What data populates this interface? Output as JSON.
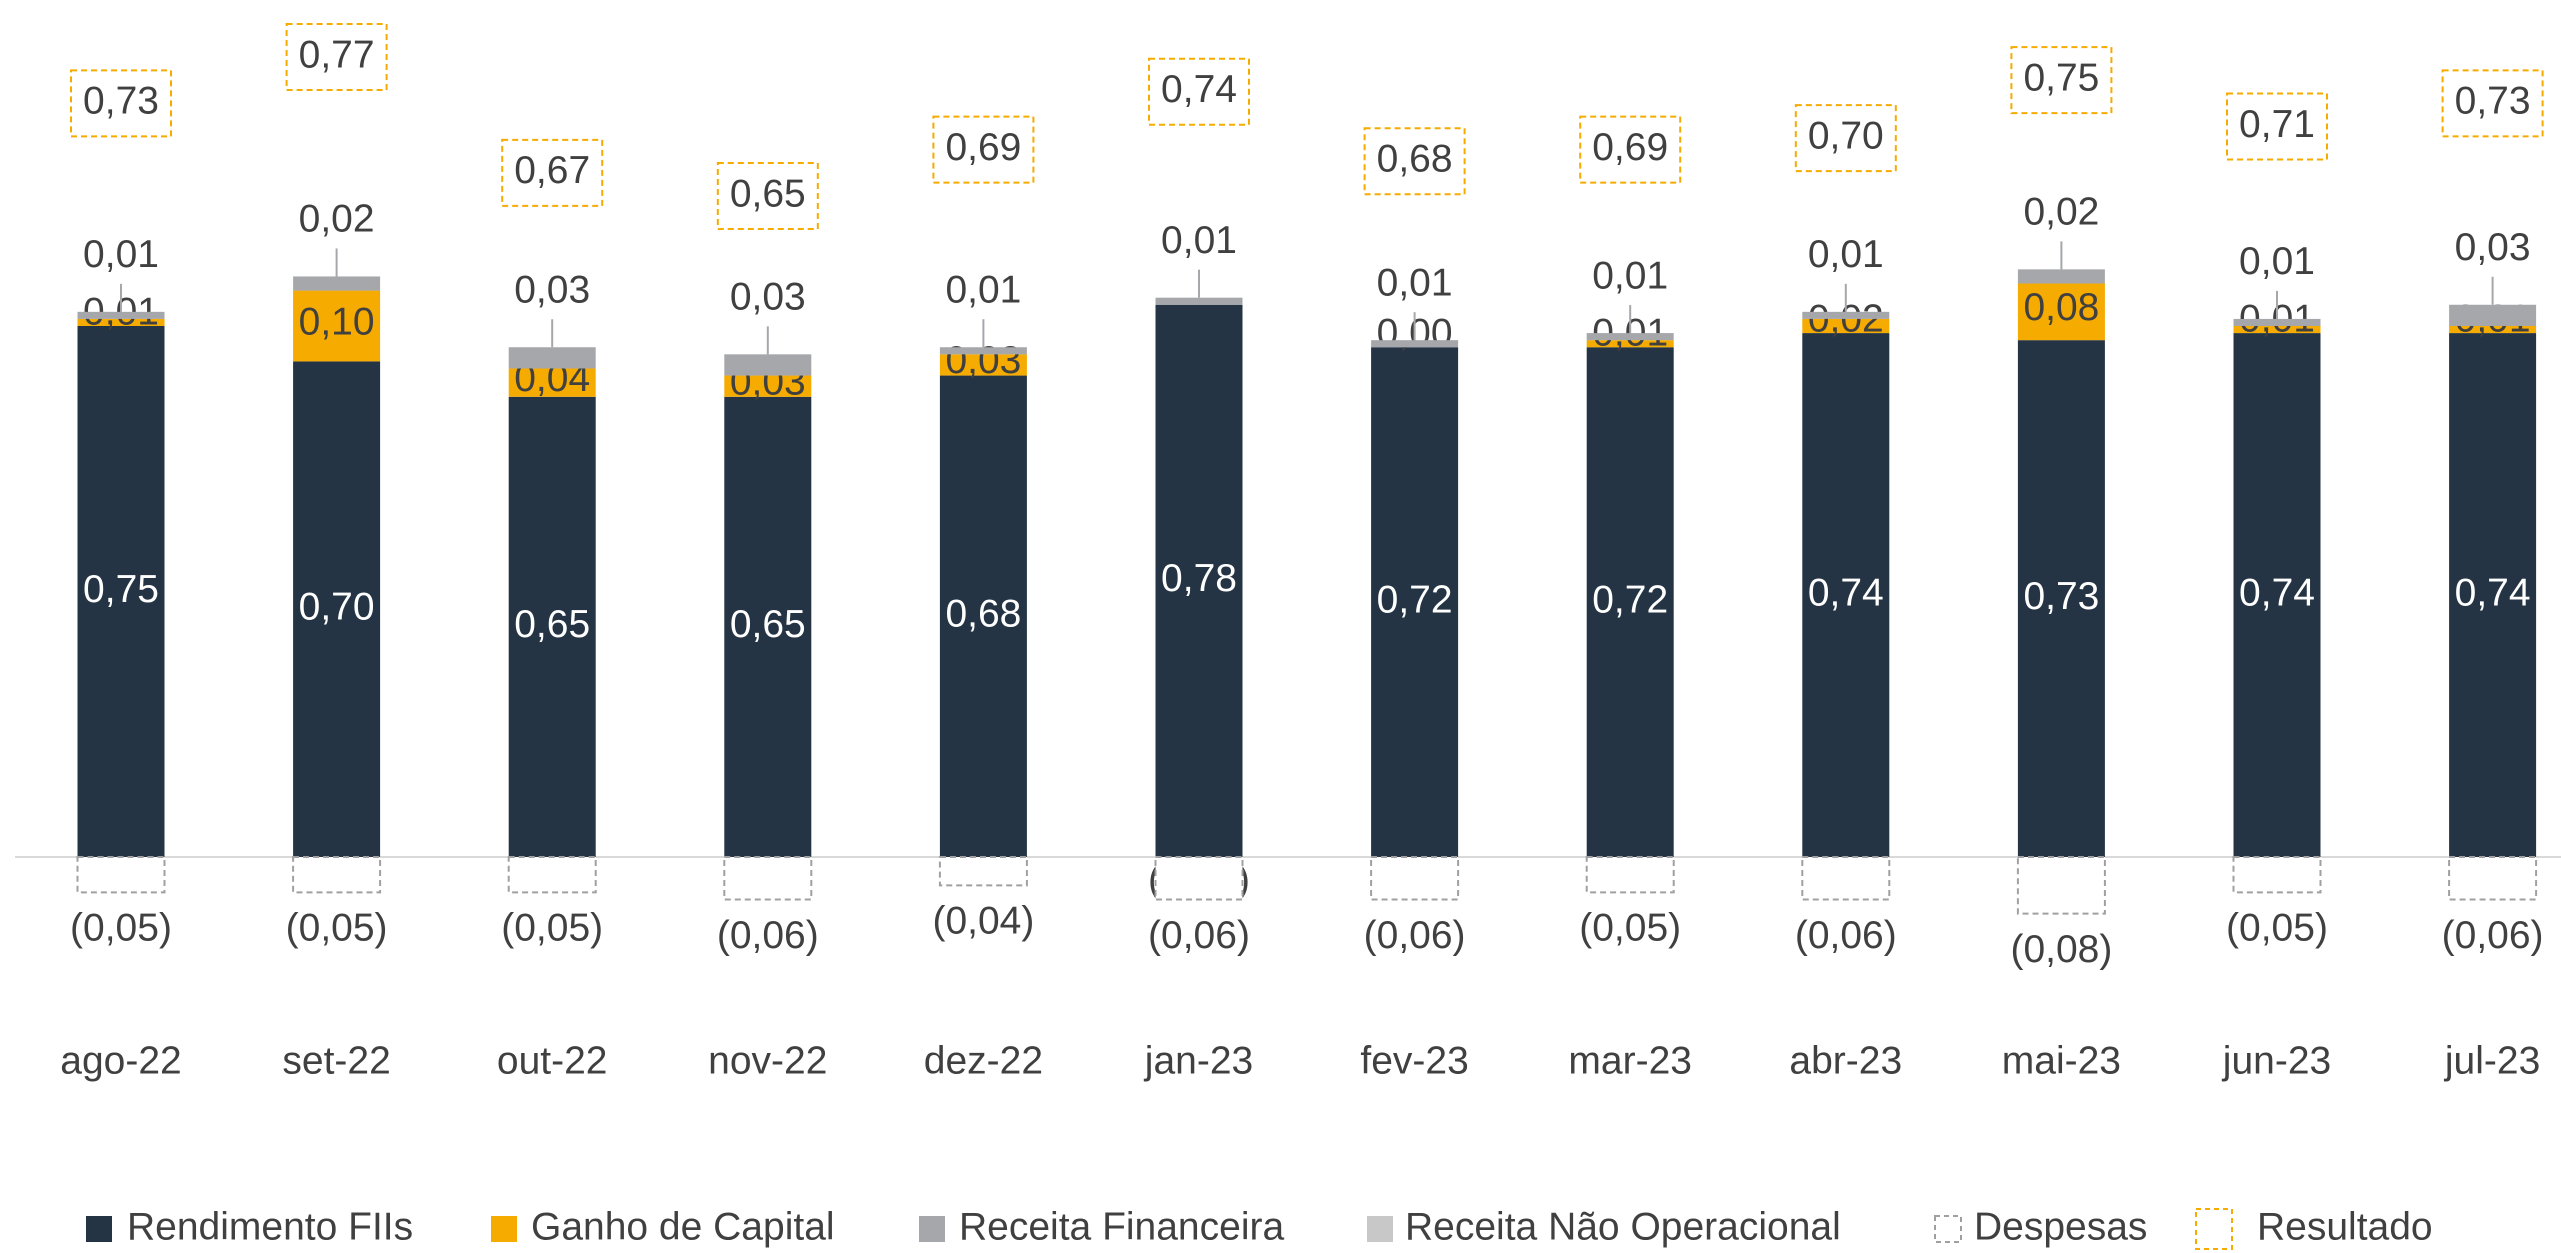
{
  "chart_data": {
    "type": "bar",
    "stacked": true,
    "categories": [
      "ago-22",
      "set-22",
      "out-22",
      "nov-22",
      "dez-22",
      "jan-23",
      "fev-23",
      "mar-23",
      "abr-23",
      "mai-23",
      "jun-23",
      "jul-23"
    ],
    "series": [
      {
        "name": "Rendimento FIIs",
        "color": "#243444",
        "values": [
          0.75,
          0.7,
          0.65,
          0.65,
          0.68,
          0.78,
          0.72,
          0.72,
          0.74,
          0.73,
          0.74,
          0.74
        ],
        "value_labels": [
          "0,75",
          "0,70",
          "0,65",
          "0,65",
          "0,68",
          "0,78",
          "0,72",
          "0,72",
          "0,74",
          "0,73",
          "0,74",
          "0,74"
        ]
      },
      {
        "name": "Ganho de Capital",
        "color": "#f5ab00",
        "values": [
          0.01,
          0.1,
          0.04,
          0.03,
          0.03,
          0,
          0.0,
          0.01,
          0.02,
          0.08,
          0.01,
          0.01
        ],
        "value_labels": [
          "0,01",
          "0,10",
          "0,04",
          "0,03",
          "0,03",
          "(0,00)",
          "0,00",
          "0,01",
          "0,02",
          "0,08",
          "0,01",
          "0,01"
        ]
      },
      {
        "name": "Receita Financeira",
        "color": "#a5a7ab",
        "values": [
          0.01,
          0.02,
          0.03,
          0.03,
          0.01,
          0.01,
          0.01,
          0.01,
          0.01,
          0.02,
          0.01,
          0.03
        ],
        "value_labels": [
          "0,01",
          "0,02",
          "0,03",
          "0,03",
          "0,01",
          "0,01",
          "0,01",
          "0,01",
          "0,01",
          "0,02",
          "0,01",
          "0,03"
        ]
      },
      {
        "name": "Receita Não Operacional",
        "color": "#c8c8c8",
        "values": [
          null,
          null,
          null,
          null,
          null,
          null,
          null,
          null,
          null,
          null,
          null,
          null
        ]
      },
      {
        "name": "Despesas",
        "color": "#a0a0a0",
        "values": [
          -0.05,
          -0.05,
          -0.05,
          -0.06,
          -0.04,
          -0.06,
          -0.06,
          -0.05,
          -0.06,
          -0.08,
          -0.05,
          -0.06
        ],
        "value_labels": [
          "(0,05)",
          "(0,05)",
          "(0,05)",
          "(0,06)",
          "(0,04)",
          "(0,06)",
          "(0,06)",
          "(0,05)",
          "(0,06)",
          "(0,08)",
          "(0,05)",
          "(0,06)"
        ]
      },
      {
        "name": "Resultado",
        "color": "#f5ab00",
        "values": [
          0.73,
          0.77,
          0.67,
          0.65,
          0.69,
          0.74,
          0.68,
          0.69,
          0.7,
          0.75,
          0.71,
          0.73
        ],
        "value_labels": [
          "0,73",
          "0,77",
          "0,67",
          "0,65",
          "0,69",
          "0,74",
          "0,68",
          "0,69",
          "0,70",
          "0,75",
          "0,71",
          "0,73"
        ]
      }
    ]
  }
}
